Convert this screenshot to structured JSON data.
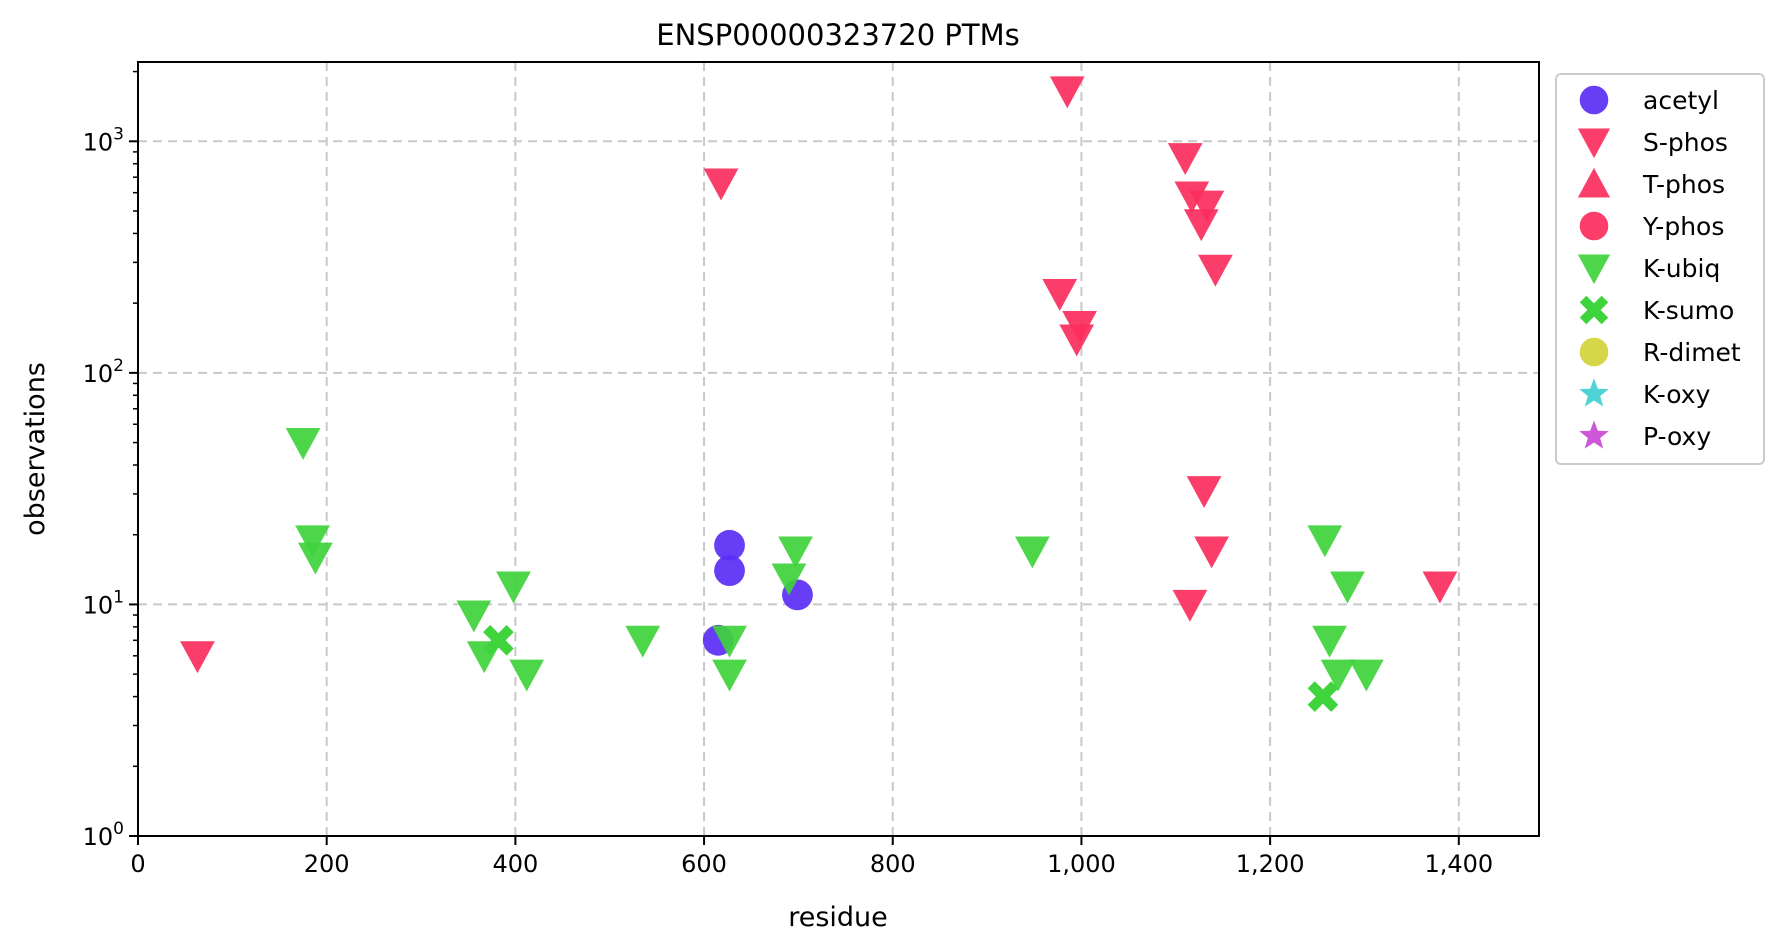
{
  "chart_data": {
    "type": "scatter",
    "title": "ENSP00000323720 PTMs",
    "xlabel": "residue",
    "ylabel": "observations",
    "xlim": [
      0,
      1485
    ],
    "ylim": [
      1,
      2200
    ],
    "yscale": "log",
    "grid": true,
    "legend_position": "outside-right",
    "x_ticks": [
      0,
      200,
      400,
      600,
      800,
      1000,
      1200,
      1400
    ],
    "x_tick_labels": [
      "0",
      "200",
      "400",
      "600",
      "800",
      "1,000",
      "1,200",
      "1,400"
    ],
    "y_ticks": [
      1,
      10,
      100,
      1000
    ],
    "y_tick_labels": [
      {
        "base": "10",
        "exp": "0"
      },
      {
        "base": "10",
        "exp": "1"
      },
      {
        "base": "10",
        "exp": "2"
      },
      {
        "base": "10",
        "exp": "3"
      }
    ],
    "series": [
      {
        "name": "acetyl",
        "marker": "circle",
        "color": "#5b2cf5",
        "points": [
          [
            615,
            7
          ],
          [
            627,
            18
          ],
          [
            627,
            14
          ],
          [
            699,
            11
          ]
        ]
      },
      {
        "name": "S-phos",
        "marker": "triangle-down",
        "color": "#fb2d5d",
        "points": [
          [
            63,
            6
          ],
          [
            618,
            660
          ],
          [
            985,
            1650
          ],
          [
            977,
            220
          ],
          [
            998,
            160
          ],
          [
            995,
            140
          ],
          [
            1110,
            850
          ],
          [
            1117,
            580
          ],
          [
            1133,
            530
          ],
          [
            1127,
            440
          ],
          [
            1142,
            280
          ],
          [
            1130,
            31
          ],
          [
            1138,
            17
          ],
          [
            1115,
            10
          ],
          [
            1380,
            12
          ]
        ]
      },
      {
        "name": "T-phos",
        "marker": "triangle-up",
        "color": "#fb2d5d",
        "points": []
      },
      {
        "name": "Y-phos",
        "marker": "circle",
        "color": "#fb2d5d",
        "points": []
      },
      {
        "name": "K-ubiq",
        "marker": "triangle-down",
        "color": "#3fd33c",
        "points": [
          [
            175,
            50
          ],
          [
            185,
            19
          ],
          [
            188,
            16
          ],
          [
            356,
            9
          ],
          [
            367,
            6
          ],
          [
            398,
            12
          ],
          [
            412,
            5
          ],
          [
            535,
            7
          ],
          [
            627,
            7
          ],
          [
            627,
            5
          ],
          [
            690,
            13
          ],
          [
            697,
            17
          ],
          [
            948,
            17
          ],
          [
            1258,
            19
          ],
          [
            1263,
            7
          ],
          [
            1272,
            5
          ],
          [
            1282,
            12
          ],
          [
            1302,
            5
          ]
        ]
      },
      {
        "name": "K-sumo",
        "marker": "x",
        "color": "#3fd33c",
        "points": [
          [
            382,
            7
          ],
          [
            1256,
            4
          ]
        ]
      },
      {
        "name": "R-dimet",
        "marker": "circle",
        "color": "#d2d33a",
        "points": []
      },
      {
        "name": "K-oxy",
        "marker": "star",
        "color": "#3fcfd0",
        "points": []
      },
      {
        "name": "P-oxy",
        "marker": "star",
        "color": "#c94ad4",
        "points": []
      }
    ]
  }
}
